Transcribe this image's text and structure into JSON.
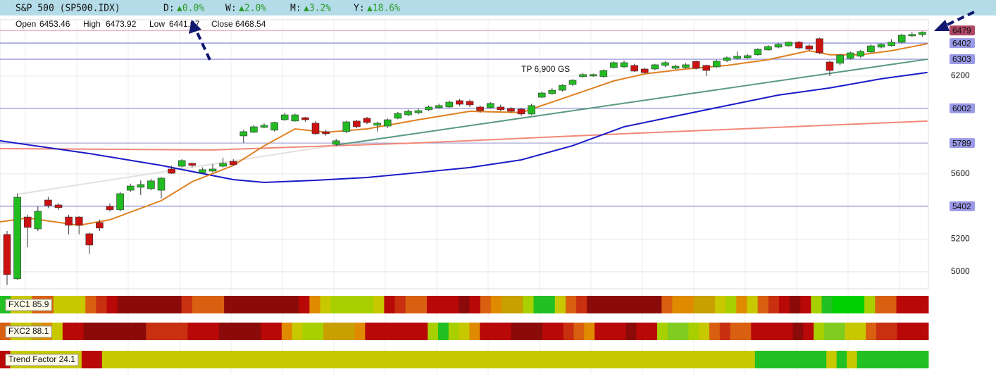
{
  "header": {
    "symbol": "S&P 500 (SP500.IDX)",
    "changes": [
      {
        "label": "D:",
        "value": "▲0.0%"
      },
      {
        "label": "W:",
        "value": "▲2.0%"
      },
      {
        "label": "M:",
        "value": "▲3.2%"
      },
      {
        "label": "Y:",
        "value": "▲18.6%"
      }
    ]
  },
  "ohlc": [
    {
      "label": "Open",
      "value": 6453.46
    },
    {
      "label": "High",
      "value": 6473.92
    },
    {
      "label": "Low",
      "value": 6441.07
    },
    {
      "label": "Close",
      "value": 6468.54
    }
  ],
  "chart_data": {
    "type": "candlestick",
    "up_color": "#22bb22",
    "down_color": "#cc1111",
    "ylim": [
      4896,
      6545
    ],
    "yticks": [
      5000,
      5200,
      5600,
      6200
    ],
    "grid": true,
    "annotation": {
      "text": "TP 6,900 GS",
      "x": 50,
      "y": 6240
    },
    "open": [
      5229,
      4957,
      5336,
      5263,
      5440,
      5410,
      5336,
      5336,
      5233,
      5302,
      5401,
      5380,
      5500,
      5518,
      5509,
      5500,
      5630,
      5647,
      5665,
      5608,
      5617,
      5647,
      5677,
      5833,
      5855,
      5885,
      5868,
      5932,
      5924,
      5945,
      5911,
      5859,
      5781,
      5859,
      5924,
      5941,
      5898,
      5893,
      5941,
      5962,
      5975,
      5993,
      6006,
      6010,
      6049,
      6045,
      6010,
      6006,
      6010,
      6001,
      5997,
      5967,
      6070,
      6092,
      6113,
      6148,
      6196,
      6200,
      6196,
      6252,
      6256,
      6265,
      6243,
      6243,
      6265,
      6247,
      6252,
      6290,
      6265,
      6256,
      6295,
      6308,
      6312,
      6330,
      6360,
      6377,
      6385,
      6407,
      6385,
      6429,
      6286,
      6278,
      6308,
      6321,
      6347,
      6377,
      6386,
      6407,
      6446,
      6453.46
    ],
    "high": [
      5250,
      5480,
      5350,
      5400,
      5460,
      5420,
      5350,
      5340,
      5240,
      5320,
      5420,
      5490,
      5540,
      5560,
      5570,
      5580,
      5650,
      5690,
      5670,
      5640,
      5660,
      5700,
      5690,
      5870,
      5900,
      5910,
      5920,
      5975,
      5970,
      5950,
      5925,
      5870,
      5815,
      5925,
      5930,
      5950,
      5920,
      5940,
      5980,
      5995,
      6000,
      6020,
      6030,
      6050,
      6060,
      6055,
      6020,
      6040,
      6025,
      6010,
      6005,
      6030,
      6105,
      6125,
      6150,
      6180,
      6220,
      6215,
      6240,
      6290,
      6295,
      6275,
      6250,
      6275,
      6290,
      6270,
      6280,
      6295,
      6270,
      6300,
      6320,
      6350,
      6335,
      6370,
      6390,
      6405,
      6410,
      6415,
      6395,
      6435,
      6295,
      6335,
      6350,
      6360,
      6395,
      6400,
      6425,
      6460,
      6470,
      6473.92
    ],
    "low": [
      4920,
      4950,
      5150,
      5250,
      5390,
      5380,
      5230,
      5230,
      5110,
      5250,
      5370,
      5370,
      5490,
      5470,
      5500,
      5450,
      5600,
      5640,
      5640,
      5600,
      5610,
      5640,
      5650,
      5790,
      5850,
      5880,
      5860,
      5925,
      5920,
      5920,
      5840,
      5835,
      5770,
      5850,
      5880,
      5905,
      5860,
      5880,
      5935,
      5955,
      5965,
      5985,
      6000,
      6005,
      6015,
      6010,
      5975,
      6000,
      5985,
      5975,
      5955,
      5960,
      6065,
      6085,
      6105,
      6140,
      6190,
      6195,
      6190,
      6245,
      6250,
      6225,
      6215,
      6235,
      6255,
      6240,
      6245,
      6240,
      6200,
      6250,
      6285,
      6300,
      6305,
      6325,
      6355,
      6370,
      6380,
      6365,
      6355,
      6335,
      6200,
      6265,
      6300,
      6310,
      6340,
      6370,
      6380,
      6400,
      6440,
      6441.07
    ],
    "close": [
      4983,
      5457,
      5272,
      5371,
      5406,
      5393,
      5285,
      5285,
      5164,
      5268,
      5380,
      5479,
      5526,
      5535,
      5557,
      5574,
      5604,
      5682,
      5652,
      5626,
      5630,
      5665,
      5656,
      5859,
      5889,
      5898,
      5915,
      5962,
      5962,
      5932,
      5846,
      5846,
      5803,
      5919,
      5889,
      5915,
      5911,
      5932,
      5971,
      5984,
      5988,
      6010,
      6019,
      6040,
      6027,
      6023,
      5988,
      6032,
      5993,
      5984,
      5967,
      6019,
      6096,
      6113,
      6143,
      6174,
      6209,
      6209,
      6234,
      6282,
      6282,
      6230,
      6221,
      6269,
      6282,
      6260,
      6269,
      6247,
      6234,
      6291,
      6312,
      6321,
      6325,
      6364,
      6381,
      6394,
      6407,
      6372,
      6364,
      6342,
      6234,
      6329,
      6342,
      6351,
      6385,
      6394,
      6407,
      6450,
      6455,
      6468.54
    ],
    "lines": [
      {
        "color": "#e6e0dc",
        "x": [
          1,
          32
        ],
        "values": [
          5475,
          5777
        ]
      },
      {
        "color": "#f08878",
        "x": [
          -0.7,
          20,
          40,
          60,
          89.5
        ],
        "values": [
          5755,
          5747,
          5790,
          5846,
          5924
        ]
      },
      {
        "color": "#1a1ac8",
        "x": [
          -0.7,
          8,
          15,
          22,
          25,
          30,
          35,
          40,
          45,
          50,
          55,
          60,
          65,
          70,
          75,
          80,
          85,
          89.5
        ],
        "values": [
          5803,
          5725,
          5652,
          5565,
          5548,
          5561,
          5578,
          5608,
          5639,
          5686,
          5773,
          5889,
          5954,
          6019,
          6083,
          6127,
          6183,
          6222
        ]
      },
      {
        "color": "#5a9a80",
        "x": [
          32,
          89.5
        ],
        "values": [
          5777,
          6303
        ]
      },
      {
        "color": "#e08020",
        "x": [
          -0.7,
          2,
          7,
          10,
          15,
          18,
          22,
          25,
          28,
          31,
          35,
          40,
          45,
          50,
          53,
          56,
          59,
          62,
          66,
          70,
          74,
          78,
          80,
          83,
          86,
          89.5
        ],
        "values": [
          5306,
          5330,
          5285,
          5319,
          5436,
          5552,
          5652,
          5772,
          5876,
          5855,
          5876,
          5932,
          5984,
          5976,
          6040,
          6105,
          6170,
          6213,
          6243,
          6265,
          6300,
          6355,
          6330,
          6330,
          6355,
          6398
        ]
      }
    ],
    "levels": [
      {
        "value": 6479,
        "color": "#b04868",
        "line": "#e8a8b8"
      },
      {
        "value": 6402,
        "color": "#9a9ae8",
        "line": "#8888d8"
      },
      {
        "value": 6303,
        "color": "#9a9ae8",
        "line": "#8888d8"
      },
      {
        "value": 6002,
        "color": "#9a9ae8",
        "line": "#8888d8"
      },
      {
        "value": 5789,
        "color": "#9a9ae8",
        "line": "#a8a8d8"
      },
      {
        "value": 5402,
        "color": "#9a9ae8",
        "line": "#8888d8"
      }
    ]
  },
  "strips": {
    "palette": {
      "D": "#8b0a0a",
      "R": "#b80808",
      "r": "#c83010",
      "O": "#d86010",
      "o": "#e08a00",
      "Y": "#c8a000",
      "y": "#c8c800",
      "l": "#a8d000",
      "g": "#80cc20",
      "G": "#22c022",
      "B": "#00d000"
    },
    "items": [
      {
        "label": "FXC1 85.9",
        "cells": "GyyOOyyyOrRDDDDDDrOOODDDDDDDRoyllllyRrOORRRDROoYYlGGyOrDDDDDDDOooYYyloyOrRDRlGBBBlOORRR"
      },
      {
        "label": "FXC2 88.1",
        "cells": "OyyYoyRRDDDDDDrrrrRRRDDDDRRoyllYYYoRRRRRRlGlyoRRRDDDRRrOoRRRDRRlgglyOrOORRRRDRlggyyOrrRRR"
      },
      {
        "label": "Trend Factor 24.1",
        "cells": "RyyyyyyyRRyyyyyyyyyyyyyyyyyyyyyyyyyyyyyyyyyyyyyyyyyyyyyyyyyyyyyyyyyyyyyyyyGGGGGGGyGyGGGGGGG"
      }
    ]
  }
}
